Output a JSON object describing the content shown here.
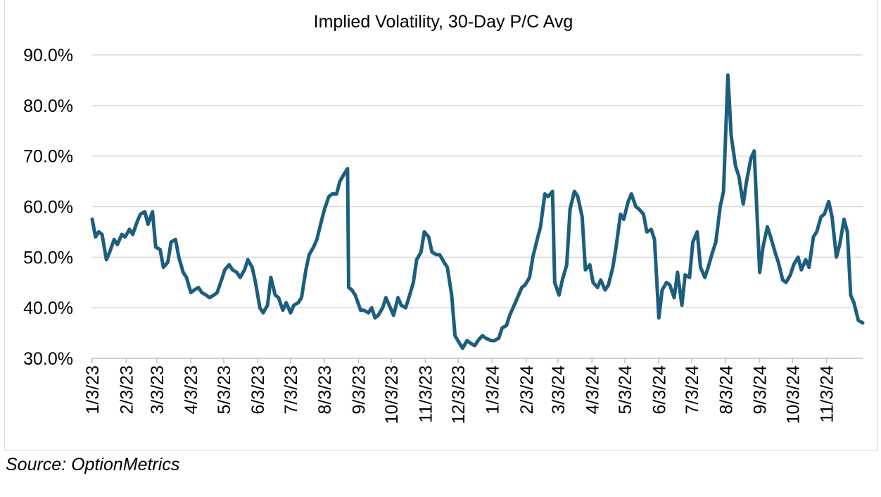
{
  "source_note": "Source: OptionMetrics",
  "chart_data": {
    "type": "line",
    "title": "Implied Volatility, 30-Day P/C Avg",
    "xlabel": "",
    "ylabel": "",
    "ylim": [
      30,
      90
    ],
    "yticks": [
      "30.0%",
      "40.0%",
      "50.0%",
      "60.0%",
      "70.0%",
      "80.0%",
      "90.0%"
    ],
    "grid": "horizontal",
    "legend": "none",
    "line_color": "#1d5e7e",
    "xticks": [
      "1/3/23",
      "2/3/23",
      "3/3/23",
      "4/3/23",
      "5/3/23",
      "6/3/23",
      "7/3/23",
      "8/3/23",
      "9/3/23",
      "10/3/23",
      "11/3/23",
      "12/3/23",
      "1/3/24",
      "2/3/24",
      "3/3/24",
      "4/3/24",
      "5/3/24",
      "6/3/24",
      "7/3/24",
      "8/3/24",
      "9/3/24",
      "10/3/24",
      "11/3/24"
    ],
    "x_range": [
      "2023-01-03",
      "2024-12-06"
    ],
    "series": [
      {
        "points": [
          [
            "2023-01-03",
            57.5
          ],
          [
            "2023-01-06",
            54.0
          ],
          [
            "2023-01-09",
            55.0
          ],
          [
            "2023-01-12",
            54.5
          ],
          [
            "2023-01-16",
            49.5
          ],
          [
            "2023-01-19",
            51.0
          ],
          [
            "2023-01-23",
            53.5
          ],
          [
            "2023-01-26",
            52.5
          ],
          [
            "2023-01-30",
            54.5
          ],
          [
            "2023-02-02",
            54.0
          ],
          [
            "2023-02-06",
            55.5
          ],
          [
            "2023-02-09",
            54.5
          ],
          [
            "2023-02-13",
            57.0
          ],
          [
            "2023-02-16",
            58.5
          ],
          [
            "2023-02-20",
            59.0
          ],
          [
            "2023-02-23",
            56.5
          ],
          [
            "2023-02-27",
            59.0
          ],
          [
            "2023-03-02",
            52.0
          ],
          [
            "2023-03-06",
            51.5
          ],
          [
            "2023-03-09",
            48.0
          ],
          [
            "2023-03-13",
            49.0
          ],
          [
            "2023-03-16",
            53.0
          ],
          [
            "2023-03-20",
            53.5
          ],
          [
            "2023-03-23",
            50.0
          ],
          [
            "2023-03-27",
            47.0
          ],
          [
            "2023-03-30",
            46.0
          ],
          [
            "2023-04-03",
            43.0
          ],
          [
            "2023-04-06",
            43.5
          ],
          [
            "2023-04-10",
            44.0
          ],
          [
            "2023-04-13",
            43.0
          ],
          [
            "2023-04-17",
            42.5
          ],
          [
            "2023-04-20",
            42.0
          ],
          [
            "2023-04-24",
            42.5
          ],
          [
            "2023-04-27",
            43.0
          ],
          [
            "2023-05-01",
            45.5
          ],
          [
            "2023-05-04",
            47.5
          ],
          [
            "2023-05-08",
            48.5
          ],
          [
            "2023-05-11",
            47.5
          ],
          [
            "2023-05-15",
            47.0
          ],
          [
            "2023-05-18",
            46.0
          ],
          [
            "2023-05-22",
            47.5
          ],
          [
            "2023-05-25",
            49.5
          ],
          [
            "2023-05-29",
            48.0
          ],
          [
            "2023-06-01",
            45.0
          ],
          [
            "2023-06-05",
            40.0
          ],
          [
            "2023-06-08",
            39.0
          ],
          [
            "2023-06-12",
            40.5
          ],
          [
            "2023-06-15",
            46.0
          ],
          [
            "2023-06-19",
            42.5
          ],
          [
            "2023-06-22",
            42.0
          ],
          [
            "2023-06-26",
            39.5
          ],
          [
            "2023-06-29",
            41.0
          ],
          [
            "2023-07-03",
            39.0
          ],
          [
            "2023-07-06",
            40.5
          ],
          [
            "2023-07-10",
            41.0
          ],
          [
            "2023-07-13",
            42.0
          ],
          [
            "2023-07-17",
            47.5
          ],
          [
            "2023-07-20",
            50.5
          ],
          [
            "2023-07-24",
            52.0
          ],
          [
            "2023-07-27",
            53.5
          ],
          [
            "2023-07-31",
            57.0
          ],
          [
            "2023-08-03",
            59.5
          ],
          [
            "2023-08-07",
            62.0
          ],
          [
            "2023-08-10",
            62.5
          ],
          [
            "2023-08-14",
            62.5
          ],
          [
            "2023-08-17",
            65.0
          ],
          [
            "2023-08-21",
            66.5
          ],
          [
            "2023-08-24",
            67.5
          ],
          [
            "2023-08-25",
            44.0
          ],
          [
            "2023-08-28",
            43.5
          ],
          [
            "2023-08-31",
            42.5
          ],
          [
            "2023-09-05",
            39.5
          ],
          [
            "2023-09-08",
            39.5
          ],
          [
            "2023-09-12",
            39.0
          ],
          [
            "2023-09-15",
            40.0
          ],
          [
            "2023-09-18",
            38.0
          ],
          [
            "2023-09-21",
            38.5
          ],
          [
            "2023-09-25",
            40.0
          ],
          [
            "2023-09-28",
            42.0
          ],
          [
            "2023-10-02",
            40.0
          ],
          [
            "2023-10-05",
            38.5
          ],
          [
            "2023-10-09",
            42.0
          ],
          [
            "2023-10-12",
            40.5
          ],
          [
            "2023-10-16",
            40.0
          ],
          [
            "2023-10-19",
            42.0
          ],
          [
            "2023-10-23",
            45.0
          ],
          [
            "2023-10-26",
            49.5
          ],
          [
            "2023-10-30",
            51.0
          ],
          [
            "2023-11-02",
            55.0
          ],
          [
            "2023-11-06",
            54.0
          ],
          [
            "2023-11-09",
            51.0
          ],
          [
            "2023-11-13",
            50.5
          ],
          [
            "2023-11-16",
            50.5
          ],
          [
            "2023-11-20",
            49.0
          ],
          [
            "2023-11-23",
            48.0
          ],
          [
            "2023-11-27",
            42.5
          ],
          [
            "2023-11-30",
            34.5
          ],
          [
            "2023-12-04",
            33.0
          ],
          [
            "2023-12-07",
            32.0
          ],
          [
            "2023-12-11",
            33.5
          ],
          [
            "2023-12-14",
            33.0
          ],
          [
            "2023-12-18",
            32.5
          ],
          [
            "2023-12-21",
            33.5
          ],
          [
            "2023-12-25",
            34.5
          ],
          [
            "2023-12-28",
            34.0
          ],
          [
            "2024-01-02",
            33.5
          ],
          [
            "2024-01-05",
            33.5
          ],
          [
            "2024-01-09",
            34.0
          ],
          [
            "2024-01-12",
            36.0
          ],
          [
            "2024-01-16",
            36.5
          ],
          [
            "2024-01-19",
            38.5
          ],
          [
            "2024-01-23",
            40.5
          ],
          [
            "2024-01-26",
            42.0
          ],
          [
            "2024-01-30",
            44.0
          ],
          [
            "2024-02-02",
            44.5
          ],
          [
            "2024-02-06",
            46.0
          ],
          [
            "2024-02-09",
            50.0
          ],
          [
            "2024-02-13",
            53.5
          ],
          [
            "2024-02-16",
            56.0
          ],
          [
            "2024-02-20",
            62.5
          ],
          [
            "2024-02-23",
            62.0
          ],
          [
            "2024-02-27",
            63.0
          ],
          [
            "2024-02-29",
            45.0
          ],
          [
            "2024-03-04",
            42.5
          ],
          [
            "2024-03-07",
            45.5
          ],
          [
            "2024-03-11",
            48.5
          ],
          [
            "2024-03-14",
            59.5
          ],
          [
            "2024-03-18",
            63.0
          ],
          [
            "2024-03-21",
            62.0
          ],
          [
            "2024-03-25",
            58.0
          ],
          [
            "2024-03-28",
            47.5
          ],
          [
            "2024-04-01",
            48.5
          ],
          [
            "2024-04-04",
            45.0
          ],
          [
            "2024-04-08",
            44.0
          ],
          [
            "2024-04-11",
            45.5
          ],
          [
            "2024-04-15",
            43.5
          ],
          [
            "2024-04-18",
            44.5
          ],
          [
            "2024-04-22",
            48.0
          ],
          [
            "2024-04-25",
            52.0
          ],
          [
            "2024-04-29",
            58.5
          ],
          [
            "2024-05-02",
            57.5
          ],
          [
            "2024-05-06",
            61.0
          ],
          [
            "2024-05-09",
            62.5
          ],
          [
            "2024-05-13",
            60.0
          ],
          [
            "2024-05-16",
            59.5
          ],
          [
            "2024-05-20",
            58.5
          ],
          [
            "2024-05-23",
            55.0
          ],
          [
            "2024-05-27",
            55.5
          ],
          [
            "2024-05-30",
            53.5
          ],
          [
            "2024-06-03",
            38.0
          ],
          [
            "2024-06-06",
            43.5
          ],
          [
            "2024-06-10",
            45.0
          ],
          [
            "2024-06-13",
            44.5
          ],
          [
            "2024-06-17",
            42.0
          ],
          [
            "2024-06-20",
            47.0
          ],
          [
            "2024-06-24",
            40.5
          ],
          [
            "2024-06-27",
            46.5
          ],
          [
            "2024-07-01",
            46.0
          ],
          [
            "2024-07-04",
            53.0
          ],
          [
            "2024-07-08",
            55.0
          ],
          [
            "2024-07-11",
            48.0
          ],
          [
            "2024-07-15",
            46.0
          ],
          [
            "2024-07-18",
            48.0
          ],
          [
            "2024-07-22",
            51.0
          ],
          [
            "2024-07-25",
            53.0
          ],
          [
            "2024-07-29",
            60.0
          ],
          [
            "2024-08-01",
            63.0
          ],
          [
            "2024-08-05",
            86.0
          ],
          [
            "2024-08-08",
            74.0
          ],
          [
            "2024-08-12",
            68.0
          ],
          [
            "2024-08-15",
            66.0
          ],
          [
            "2024-08-19",
            60.5
          ],
          [
            "2024-08-22",
            65.0
          ],
          [
            "2024-08-26",
            69.5
          ],
          [
            "2024-08-29",
            71.0
          ],
          [
            "2024-09-03",
            47.0
          ],
          [
            "2024-09-06",
            52.0
          ],
          [
            "2024-09-10",
            56.0
          ],
          [
            "2024-09-13",
            54.0
          ],
          [
            "2024-09-17",
            51.0
          ],
          [
            "2024-09-20",
            49.0
          ],
          [
            "2024-09-24",
            45.5
          ],
          [
            "2024-09-27",
            45.0
          ],
          [
            "2024-10-01",
            46.5
          ],
          [
            "2024-10-04",
            48.5
          ],
          [
            "2024-10-08",
            50.0
          ],
          [
            "2024-10-11",
            47.5
          ],
          [
            "2024-10-15",
            49.5
          ],
          [
            "2024-10-18",
            48.0
          ],
          [
            "2024-10-22",
            54.0
          ],
          [
            "2024-10-25",
            55.0
          ],
          [
            "2024-10-29",
            58.0
          ],
          [
            "2024-11-01",
            58.5
          ],
          [
            "2024-11-05",
            61.0
          ],
          [
            "2024-11-08",
            58.0
          ],
          [
            "2024-11-12",
            50.0
          ],
          [
            "2024-11-15",
            52.5
          ],
          [
            "2024-11-19",
            57.5
          ],
          [
            "2024-11-22",
            55.0
          ],
          [
            "2024-11-25",
            42.5
          ],
          [
            "2024-11-28",
            41.0
          ],
          [
            "2024-12-02",
            37.5
          ],
          [
            "2024-12-06",
            37.0
          ]
        ]
      }
    ]
  }
}
